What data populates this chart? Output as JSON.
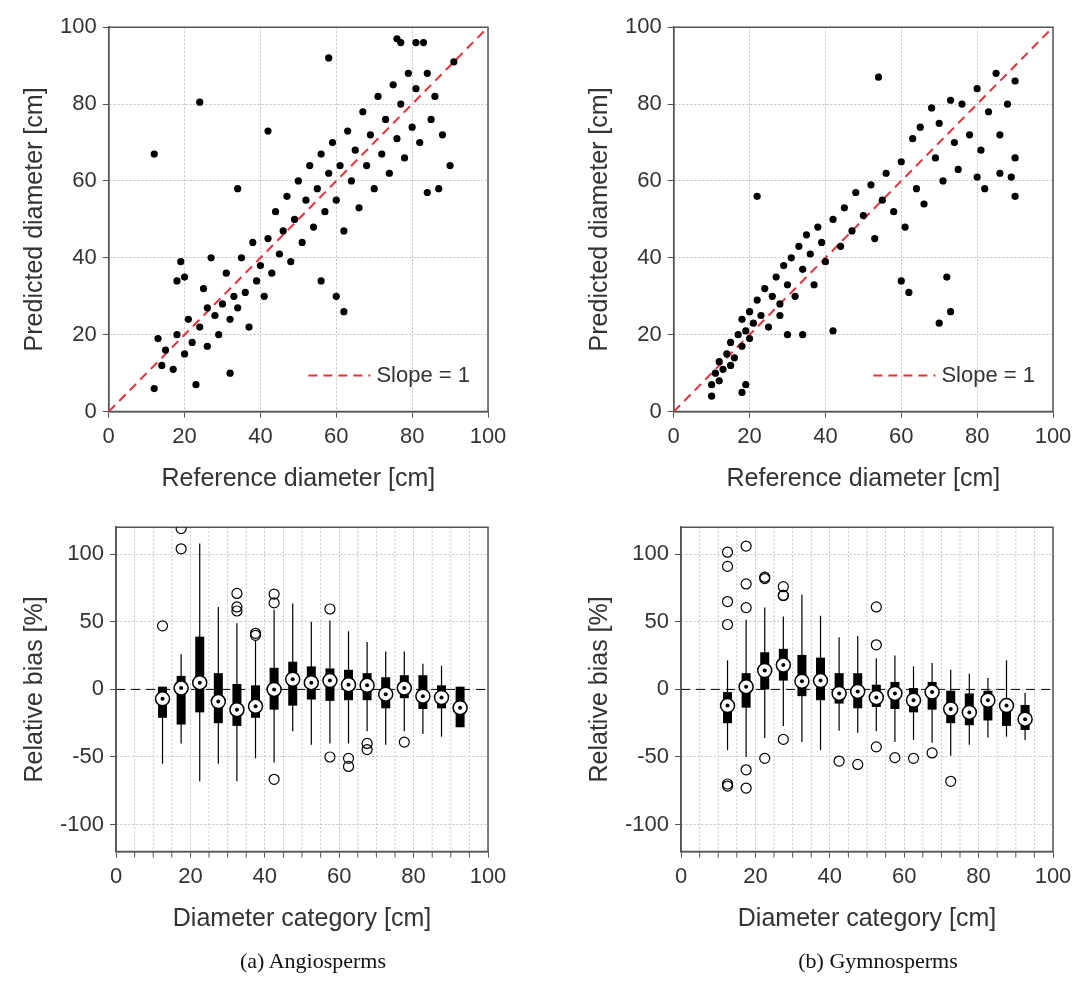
{
  "chart_data": [
    {
      "type": "scatter",
      "xlabel": "Reference diameter [cm]",
      "ylabel": "Predicted diameter [cm]",
      "xlim": [
        0,
        100
      ],
      "xticks": [
        0,
        20,
        40,
        60,
        80,
        100
      ],
      "ylim": [
        0,
        100
      ],
      "yticks": [
        0,
        20,
        40,
        60,
        80,
        100
      ],
      "grid": true,
      "legend": "bottom right",
      "series": [
        {
          "type": "scatter",
          "color": "#000000",
          "marker": "circle",
          "x": [
            12,
            24,
            12,
            23,
            32,
            62,
            60,
            56,
            84,
            87,
            90,
            91,
            76,
            77,
            58,
            81,
            83,
            34,
            42,
            20,
            18,
            19,
            27,
            26,
            13,
            14,
            15,
            17,
            18,
            20,
            21,
            22,
            24,
            25,
            26,
            28,
            29,
            30,
            31,
            32,
            33,
            34,
            35,
            36,
            37,
            38,
            39,
            40,
            41,
            42,
            43,
            44,
            45,
            46,
            47,
            48,
            49,
            50,
            51,
            52,
            53,
            54,
            55,
            56,
            57,
            58,
            59,
            60,
            61,
            62,
            63,
            64,
            65,
            66,
            67,
            68,
            69,
            70,
            71,
            72,
            73,
            74,
            75,
            76,
            77,
            78,
            79,
            80,
            81,
            82,
            84,
            85,
            86,
            88
          ],
          "values": [
            67,
            80.5,
            6,
            7,
            10,
            26,
            30,
            34,
            57,
            58,
            64,
            91,
            97,
            96,
            92,
            96,
            96,
            58,
            73,
            35,
            34,
            39,
            40,
            27,
            19,
            12,
            16,
            11,
            20,
            15,
            24,
            18,
            22,
            32,
            17,
            25,
            20,
            28,
            36,
            24,
            30,
            27,
            40,
            31,
            22,
            44,
            34,
            38,
            30,
            45,
            36,
            52,
            41,
            47,
            56,
            39,
            50,
            60,
            44,
            55,
            64,
            48,
            58,
            67,
            52,
            62,
            70,
            55,
            64,
            47,
            73,
            60,
            68,
            53,
            78,
            64,
            72,
            58,
            82,
            67,
            76,
            62,
            85,
            71,
            80,
            66,
            88,
            74,
            84,
            70,
            88,
            76,
            82,
            72
          ]
        },
        {
          "type": "line",
          "name": "Slope = 1",
          "color": "#e8303a",
          "marker": "none",
          "line_style": "dashed",
          "x": [
            0,
            100
          ],
          "values": [
            0,
            100
          ]
        }
      ]
    },
    {
      "type": "scatter",
      "xlabel": "Reference diameter [cm]",
      "ylabel": "Predicted diameter [cm]",
      "xlim": [
        0,
        100
      ],
      "xticks": [
        0,
        20,
        40,
        60,
        80,
        100
      ],
      "ylim": [
        0,
        100
      ],
      "yticks": [
        0,
        20,
        40,
        60,
        80,
        100
      ],
      "grid": true,
      "legend": "bottom right",
      "series": [
        {
          "type": "scatter",
          "color": "#000000",
          "marker": "circle",
          "x": [
            54,
            22,
            70,
            30,
            34,
            42,
            28,
            10,
            18,
            19,
            73,
            72,
            62,
            60,
            90,
            89,
            90,
            86,
            80,
            82,
            10,
            11,
            12,
            12,
            13,
            14,
            15,
            15,
            16,
            17,
            18,
            18,
            19,
            20,
            20,
            21,
            22,
            23,
            24,
            25,
            26,
            27,
            28,
            29,
            30,
            31,
            32,
            33,
            34,
            35,
            36,
            37,
            38,
            39,
            40,
            42,
            44,
            45,
            47,
            48,
            50,
            52,
            53,
            55,
            56,
            58,
            60,
            61,
            63,
            64,
            65,
            66,
            68,
            69,
            70,
            71,
            73,
            74,
            75,
            76,
            78,
            80,
            81,
            83,
            85,
            86,
            88,
            90
          ],
          "values": [
            87,
            56,
            23,
            20,
            20,
            21,
            25,
            4,
            5,
            7,
            26,
            35,
            31,
            34,
            56,
            61,
            66,
            62,
            61,
            58,
            7,
            10,
            8,
            13,
            11,
            15,
            12,
            18,
            14,
            20,
            17,
            24,
            21,
            26,
            19,
            23,
            29,
            25,
            32,
            22,
            30,
            35,
            28,
            38,
            33,
            40,
            30,
            43,
            37,
            46,
            41,
            33,
            48,
            44,
            39,
            50,
            43,
            53,
            47,
            57,
            51,
            59,
            45,
            55,
            62,
            52,
            65,
            48,
            71,
            58,
            74,
            54,
            79,
            66,
            75,
            60,
            81,
            70,
            63,
            80,
            72,
            84,
            68,
            78,
            88,
            72,
            80,
            86
          ]
        },
        {
          "type": "line",
          "name": "Slope = 1",
          "color": "#e8303a",
          "marker": "none",
          "line_style": "dashed",
          "x": [
            0,
            100
          ],
          "values": [
            0,
            100
          ]
        }
      ]
    },
    {
      "type": "box",
      "xlabel": "Diameter category [cm]",
      "ylabel": "Relative bias [%]",
      "annotations": [
        "(a) Angiosperms"
      ],
      "color": "#000000",
      "xlim": [
        0,
        100
      ],
      "xticks": [
        0,
        {
          "value": 5,
          "label": null
        },
        {
          "value": 10,
          "label": null
        },
        {
          "value": 15,
          "label": null
        },
        20,
        {
          "value": 25,
          "label": null
        },
        {
          "value": 30,
          "label": null
        },
        {
          "value": 35,
          "label": null
        },
        40,
        {
          "value": 45,
          "label": null
        },
        {
          "value": 50,
          "label": null
        },
        {
          "value": 55,
          "label": null
        },
        60,
        {
          "value": 65,
          "label": null
        },
        {
          "value": 70,
          "label": null
        },
        {
          "value": 75,
          "label": null
        },
        80,
        {
          "value": 85,
          "label": null
        },
        {
          "value": 90,
          "label": null
        },
        {
          "value": 95,
          "label": null
        },
        100
      ],
      "ylim": [
        -120,
        120
      ],
      "yticks": [
        -100,
        -50,
        0,
        50,
        100
      ],
      "grid": true,
      "ref_lines": [
        {
          "axis": "y",
          "value": 0,
          "color": "#000000",
          "line_style": "dashed"
        }
      ],
      "x": [
        12.5,
        17.5,
        22.5,
        27.5,
        32.5,
        37.5,
        42.5,
        47.5,
        52.5,
        57.5,
        62.5,
        67.5,
        72.5,
        77.5,
        82.5,
        87.5,
        92.5
      ],
      "boxes": [
        {
          "low": -55,
          "q1": -21,
          "median": -7,
          "q3": 2,
          "high": 2,
          "outliers": [
            47
          ]
        },
        {
          "low": -40,
          "q1": -26,
          "median": 1,
          "q3": 10,
          "high": 26,
          "outliers": [
            119,
            104
          ]
        },
        {
          "low": -68,
          "q1": -17,
          "median": 5,
          "q3": 39,
          "high": 108
        },
        {
          "low": -55,
          "q1": -25,
          "median": -9,
          "q3": 12,
          "high": 61
        },
        {
          "low": -68,
          "q1": -27,
          "median": -15,
          "q3": 4,
          "high": 49,
          "outliers": [
            71,
            61,
            58
          ]
        },
        {
          "low": -51,
          "q1": -21,
          "median": -12.5,
          "q3": 3,
          "high": 36,
          "outliers": [
            41.5,
            40
          ]
        },
        {
          "low": -54,
          "q1": -15,
          "median": 0,
          "q3": 16,
          "high": 59,
          "outliers": [
            70.5,
            64,
            -66.5
          ]
        },
        {
          "low": -31,
          "q1": -12,
          "median": 7.5,
          "q3": 20.5,
          "high": 63.5
        },
        {
          "low": -41,
          "q1": -7.5,
          "median": 5,
          "q3": 17,
          "high": 50
        },
        {
          "low": -40,
          "q1": -8.5,
          "median": 6.5,
          "q3": 15.5,
          "high": 51,
          "outliers": [
            59.5,
            -50
          ]
        },
        {
          "low": -40,
          "q1": -8,
          "median": 3.5,
          "q3": 14.5,
          "high": 43,
          "outliers": [
            -51,
            -57
          ]
        },
        {
          "low": -31,
          "q1": -8,
          "median": 3,
          "q3": 12,
          "high": 35,
          "outliers": [
            -40,
            -44.5
          ]
        },
        {
          "low": -41,
          "q1": -14,
          "median": -3.5,
          "q3": 9,
          "high": 28
        },
        {
          "low": -31,
          "q1": -6.5,
          "median": 1,
          "q3": 10.5,
          "high": 28,
          "outliers": [
            -39
          ]
        },
        {
          "low": -33,
          "q1": -14.5,
          "median": -5,
          "q3": 10.5,
          "high": 19
        },
        {
          "low": -35,
          "q1": -14,
          "median": -6,
          "q3": 3,
          "high": 17.5
        },
        {
          "low": -28,
          "q1": -28,
          "median": -13.5,
          "q3": 2,
          "high": 2
        }
      ]
    },
    {
      "type": "box",
      "xlabel": "Diameter category [cm]",
      "ylabel": "Relative bias [%]",
      "annotations": [
        "(b) Gymnosperms"
      ],
      "color": "#000000",
      "xlim": [
        0,
        100
      ],
      "xticks": [
        0,
        {
          "value": 5,
          "label": null
        },
        {
          "value": 10,
          "label": null
        },
        {
          "value": 15,
          "label": null
        },
        20,
        {
          "value": 25,
          "label": null
        },
        {
          "value": 30,
          "label": null
        },
        {
          "value": 35,
          "label": null
        },
        40,
        {
          "value": 45,
          "label": null
        },
        {
          "value": 50,
          "label": null
        },
        {
          "value": 55,
          "label": null
        },
        60,
        {
          "value": 65,
          "label": null
        },
        {
          "value": 70,
          "label": null
        },
        {
          "value": 75,
          "label": null
        },
        80,
        {
          "value": 85,
          "label": null
        },
        {
          "value": 90,
          "label": null
        },
        {
          "value": 95,
          "label": null
        },
        100
      ],
      "ylim": [
        -120,
        120
      ],
      "yticks": [
        -100,
        -50,
        0,
        50,
        100
      ],
      "grid": true,
      "ref_lines": [
        {
          "axis": "y",
          "value": 0,
          "color": "#000000",
          "line_style": "dashed"
        }
      ],
      "x": [
        12.5,
        17.5,
        22.5,
        27.5,
        32.5,
        37.5,
        42.5,
        47.5,
        52.5,
        57.5,
        62.5,
        67.5,
        72.5,
        77.5,
        82.5,
        87.5,
        92.5
      ],
      "boxes": [
        {
          "low": -45,
          "q1": -25,
          "median": -12,
          "q3": -2,
          "high": 21.5,
          "outliers": [
            101.5,
            91,
            65,
            48,
            -70,
            -71.5
          ]
        },
        {
          "low": -50,
          "q1": -13.5,
          "median": 2,
          "q3": 12,
          "high": 51.5,
          "outliers": [
            106,
            78,
            60.5,
            -59.5,
            -73
          ]
        },
        {
          "low": -36,
          "q1": 0,
          "median": 14,
          "q3": 27.5,
          "high": 60.5,
          "outliers": [
            82,
            83,
            -51
          ]
        },
        {
          "low": -27,
          "q1": 6.5,
          "median": 18,
          "q3": 30,
          "high": 54,
          "outliers": [
            76,
            69.5,
            69.5,
            -37
          ]
        },
        {
          "low": -39,
          "q1": -5,
          "median": 6,
          "q3": 25.5,
          "high": 70
        },
        {
          "low": -45,
          "q1": -8,
          "median": 6.5,
          "q3": 23.5,
          "high": 54.5
        },
        {
          "low": -30.5,
          "q1": -10.5,
          "median": -3,
          "q3": 12,
          "high": 38.5,
          "outliers": [
            -53
          ]
        },
        {
          "low": -32,
          "q1": -14,
          "median": -1.5,
          "q3": 12,
          "high": 39.5,
          "outliers": [
            -55.5
          ]
        },
        {
          "low": -31,
          "q1": -13,
          "median": -6,
          "q3": 3.5,
          "high": 23,
          "outliers": [
            61,
            33,
            -42.5
          ]
        },
        {
          "low": -39,
          "q1": -14.5,
          "median": -3,
          "q3": 5.5,
          "high": 25,
          "outliers": [
            -50.5
          ]
        },
        {
          "low": -37.5,
          "q1": -17,
          "median": -8,
          "q3": 1,
          "high": 17,
          "outliers": [
            -51
          ]
        },
        {
          "low": -39.5,
          "q1": -15,
          "median": -2,
          "q3": 5.5,
          "high": 19.5,
          "outliers": [
            -47
          ]
        },
        {
          "low": -49,
          "q1": -25,
          "median": -14.5,
          "q3": -1,
          "high": 14.5,
          "outliers": [
            -68
          ]
        },
        {
          "low": -41,
          "q1": -26.5,
          "median": -17,
          "q3": -3,
          "high": 11.5
        },
        {
          "low": -35.5,
          "q1": -23,
          "median": -8,
          "q3": -1,
          "high": 8.5
        },
        {
          "low": -35,
          "q1": -27,
          "median": -12,
          "q3": -7.5,
          "high": 21.5
        },
        {
          "low": -37.5,
          "q1": -30,
          "median": -22,
          "q3": -11.5,
          "high": -2.5
        }
      ]
    }
  ]
}
